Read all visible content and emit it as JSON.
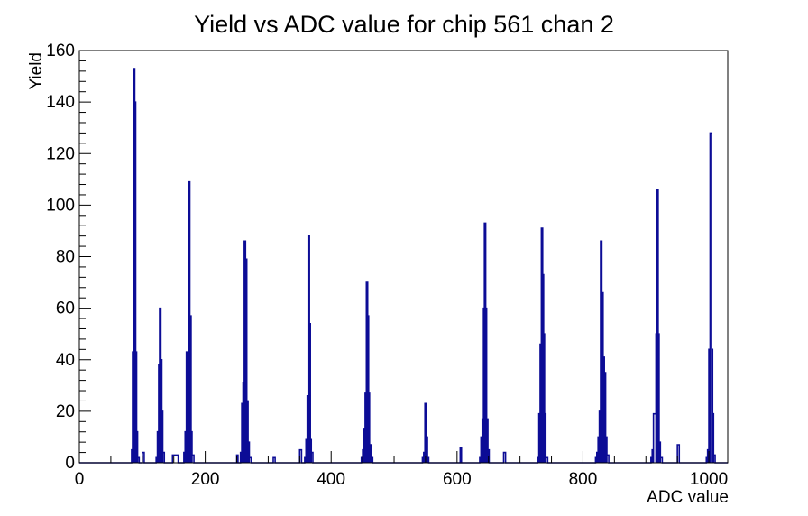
{
  "window": {
    "background": "#ffffff"
  },
  "chart_data": {
    "type": "histogram",
    "title": "Yield vs ADC value for chip 561 chan 2",
    "xlabel": "ADC value",
    "ylabel": "Yield",
    "xlim": [
      0,
      1030
    ],
    "ylim": [
      0,
      160
    ],
    "x_major_ticks": [
      0,
      200,
      400,
      600,
      800,
      1000
    ],
    "x_minor_step": 50,
    "y_major_ticks": [
      0,
      20,
      40,
      60,
      80,
      100,
      120,
      140,
      160
    ],
    "y_minor_step": 4,
    "grid": false,
    "legend": null,
    "line_color": "#0c0c96",
    "frame_color": "#000000",
    "peaks": [
      {
        "adc": 87,
        "yield": 153
      },
      {
        "adc": 128,
        "yield": 60
      },
      {
        "adc": 175,
        "yield": 109
      },
      {
        "adc": 263,
        "yield": 86
      },
      {
        "adc": 365,
        "yield": 88
      },
      {
        "adc": 457,
        "yield": 70
      },
      {
        "adc": 550,
        "yield": 23
      },
      {
        "adc": 644,
        "yield": 93
      },
      {
        "adc": 739,
        "yield": 91
      },
      {
        "adc": 830,
        "yield": 86
      },
      {
        "adc": 918,
        "yield": 106
      },
      {
        "adc": 1003,
        "yield": 128
      }
    ],
    "bins": [
      [
        83,
        84.5,
        5
      ],
      [
        84.5,
        86,
        43
      ],
      [
        86,
        88,
        153
      ],
      [
        88,
        89.5,
        140
      ],
      [
        89.5,
        91,
        43
      ],
      [
        91,
        92.5,
        12
      ],
      [
        92.5,
        95,
        2
      ],
      [
        100,
        103,
        4
      ],
      [
        122,
        124,
        2
      ],
      [
        124,
        126,
        12
      ],
      [
        126,
        127.5,
        38
      ],
      [
        127.5,
        129.5,
        60
      ],
      [
        129.5,
        131,
        40
      ],
      [
        131,
        132.5,
        20
      ],
      [
        132.5,
        135,
        4
      ],
      [
        148,
        157,
        3
      ],
      [
        166,
        168,
        4
      ],
      [
        168,
        170,
        12
      ],
      [
        170,
        172,
        43
      ],
      [
        172,
        173.5,
        33
      ],
      [
        173.5,
        175.5,
        109
      ],
      [
        175.5,
        177.5,
        57
      ],
      [
        177.5,
        179,
        12
      ],
      [
        179,
        182,
        3
      ],
      [
        250,
        252,
        3
      ],
      [
        256,
        258,
        4
      ],
      [
        258,
        260,
        23
      ],
      [
        260,
        262,
        31
      ],
      [
        262,
        264,
        86
      ],
      [
        264,
        266,
        79
      ],
      [
        266,
        268,
        24
      ],
      [
        268,
        270,
        8
      ],
      [
        270,
        273,
        2
      ],
      [
        308,
        311,
        2
      ],
      [
        350,
        353,
        5
      ],
      [
        358,
        360,
        2
      ],
      [
        360,
        362,
        9
      ],
      [
        362,
        363.5,
        26
      ],
      [
        363.5,
        365.5,
        88
      ],
      [
        365.5,
        367,
        54
      ],
      [
        367,
        368.5,
        9
      ],
      [
        368.5,
        371,
        4
      ],
      [
        448,
        450,
        2
      ],
      [
        450,
        452,
        5
      ],
      [
        452,
        454,
        13
      ],
      [
        454,
        456,
        27
      ],
      [
        456,
        458,
        70
      ],
      [
        458,
        459.5,
        57
      ],
      [
        459.5,
        461,
        27
      ],
      [
        461,
        463,
        7
      ],
      [
        463,
        466,
        2
      ],
      [
        545,
        547,
        2
      ],
      [
        547,
        549,
        4
      ],
      [
        549,
        551,
        23
      ],
      [
        551,
        553,
        10
      ],
      [
        553,
        555,
        2
      ],
      [
        605,
        607,
        6
      ],
      [
        636,
        638,
        2
      ],
      [
        638,
        640,
        10
      ],
      [
        640,
        642,
        17
      ],
      [
        642,
        643.5,
        60
      ],
      [
        643.5,
        645.5,
        93
      ],
      [
        645.5,
        647,
        60
      ],
      [
        647,
        649,
        17
      ],
      [
        649,
        651,
        5
      ],
      [
        674,
        677,
        4
      ],
      [
        728,
        730,
        2
      ],
      [
        730,
        732,
        19
      ],
      [
        732,
        734,
        46
      ],
      [
        734,
        736,
        91
      ],
      [
        736,
        737.5,
        73
      ],
      [
        737.5,
        739,
        50
      ],
      [
        739,
        741,
        19
      ],
      [
        741,
        744,
        2
      ],
      [
        820,
        822,
        2
      ],
      [
        822,
        824,
        4
      ],
      [
        824,
        826,
        10
      ],
      [
        826,
        828,
        20
      ],
      [
        828,
        830,
        86
      ],
      [
        830,
        832,
        66
      ],
      [
        832,
        834,
        41
      ],
      [
        834,
        836,
        35
      ],
      [
        836,
        838,
        10
      ],
      [
        838,
        841,
        3
      ],
      [
        908,
        910,
        2
      ],
      [
        910,
        912,
        5
      ],
      [
        912,
        916,
        19
      ],
      [
        916,
        917.5,
        50
      ],
      [
        917.5,
        919.5,
        106
      ],
      [
        919.5,
        921,
        50
      ],
      [
        921,
        923,
        8
      ],
      [
        923,
        926,
        2
      ],
      [
        950,
        953,
        7
      ],
      [
        996,
        998,
        2
      ],
      [
        998,
        1000,
        5
      ],
      [
        1000,
        1002,
        44
      ],
      [
        1002,
        1004.5,
        128
      ],
      [
        1004.5,
        1006,
        44
      ],
      [
        1006,
        1007.5,
        19
      ],
      [
        1007.5,
        1010,
        3
      ]
    ]
  }
}
